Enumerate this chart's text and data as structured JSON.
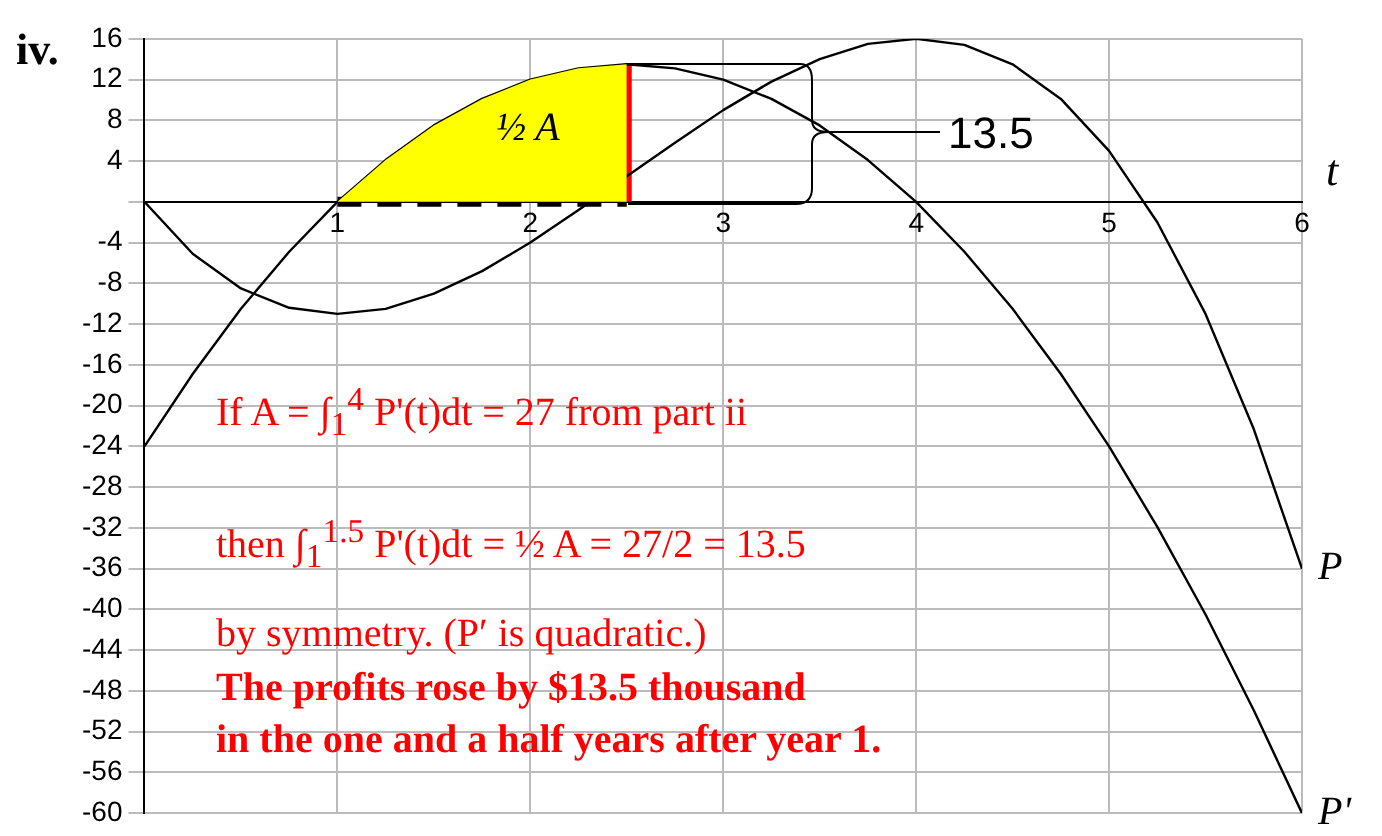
{
  "chart_data": {
    "type": "line",
    "title": "iv.",
    "xlabel": "t",
    "xlim": [
      0,
      6
    ],
    "xticks": [
      {
        "value": 0,
        "label": null
      },
      1,
      2,
      3,
      4,
      5,
      6
    ],
    "ylim": [
      -60,
      16
    ],
    "yticks": [
      16,
      12,
      8,
      4,
      {
        "value": 0,
        "label": null
      },
      -4,
      -8,
      -12,
      -16,
      -20,
      -24,
      -28,
      -32,
      -36,
      -40,
      -44,
      -48,
      -52,
      -56,
      -60
    ],
    "grid": true,
    "legend": false,
    "marker": "none",
    "line_style": "solid",
    "series": [
      {
        "type": "area",
        "color": "#ffff00",
        "x": [
          1,
          1.25,
          1.5,
          1.75,
          2,
          2.25,
          2.5
        ],
        "values": [
          0,
          4.1,
          7.5,
          10.1,
          12,
          13.1,
          13.5
        ]
      },
      {
        "name": "P",
        "color": "#000000",
        "x": [
          0,
          0.25,
          0.5,
          0.75,
          1,
          1.25,
          1.5,
          1.75,
          2,
          2.25,
          2.5,
          2.75,
          3,
          3.25,
          3.5,
          3.75,
          4,
          4.25,
          4.5,
          4.75,
          5,
          5.25,
          5.5,
          5.75,
          6
        ],
        "values": [
          0,
          -5.1,
          -8.5,
          -10.4,
          -11,
          -10.5,
          -9,
          -6.8,
          -4,
          -0.8,
          2.5,
          5.8,
          9,
          11.8,
          14,
          15.5,
          16,
          15.4,
          13.5,
          10.1,
          5,
          -2,
          -11,
          -22.3,
          -36
        ]
      },
      {
        "name": "P'",
        "color": "#000000",
        "x": [
          0,
          0.25,
          0.5,
          0.75,
          1,
          1.25,
          1.5,
          1.75,
          2,
          2.25,
          2.5,
          2.75,
          3,
          3.25,
          3.5,
          3.75,
          4,
          4.25,
          4.5,
          4.75,
          5,
          5.25,
          5.5,
          5.75,
          6
        ],
        "values": [
          -24,
          -16.9,
          -10.5,
          -4.9,
          0,
          4.1,
          7.5,
          10.1,
          12,
          13.1,
          13.5,
          13.1,
          12,
          10.1,
          7.5,
          4.1,
          0,
          -4.9,
          -10.5,
          -16.9,
          -24,
          -31.9,
          -40.5,
          -49.9,
          -60
        ]
      },
      {
        "color": "#ff0000",
        "x": [
          2.5,
          2.5
        ],
        "values": [
          0,
          13.5
        ]
      },
      {
        "color": "#000000",
        "line_style": "dashed",
        "x": [
          1,
          2.5
        ],
        "values": [
          0,
          0
        ]
      }
    ],
    "annotations": [
      "½ A",
      "13.5",
      "If A = ∫$_{1}$$^{4}$ P'(t)dt = 27 from part ii",
      "then ∫$_{1}$$^{1.5}$ P'(t)dt = ½ A = 27/2 = 13.5",
      "by symmetry. (P′ is quadratic.)",
      "The profits rose by $13.5 thousand",
      "in the one and a half years after year 1."
    ]
  }
}
